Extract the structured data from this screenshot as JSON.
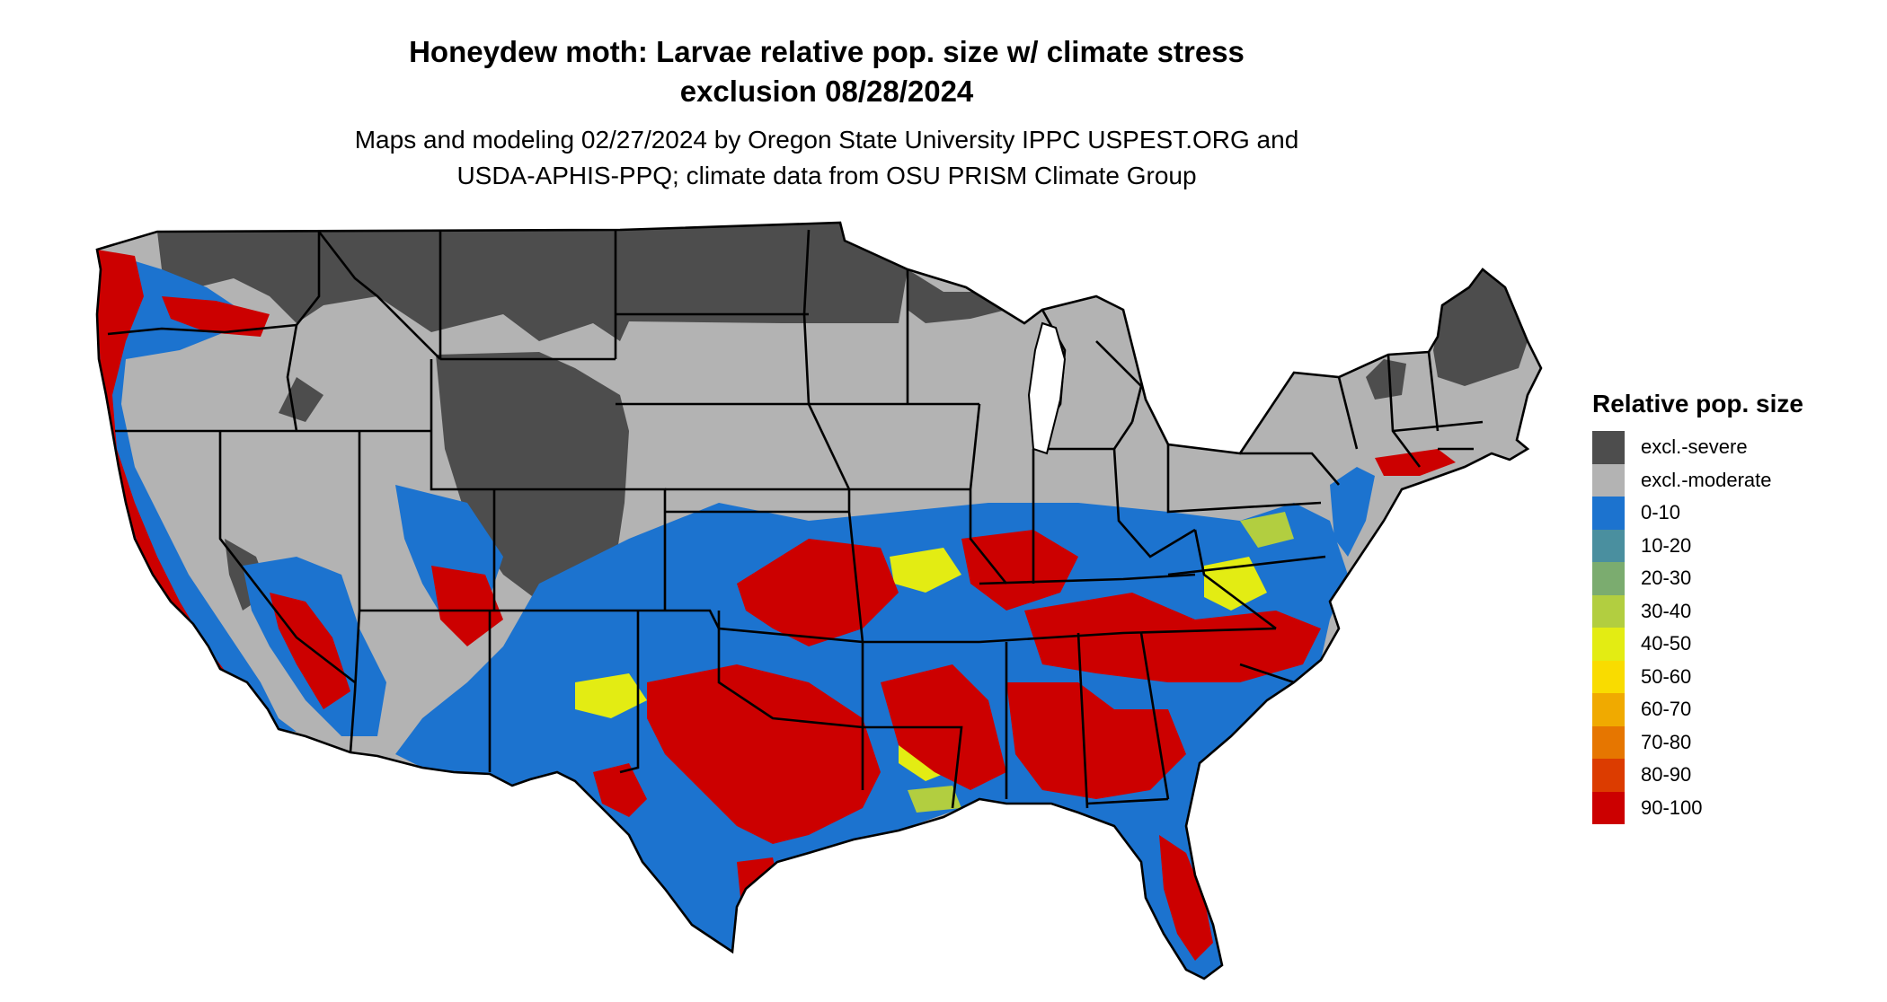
{
  "title_line1": "Honeydew moth: Larvae relative pop. size w/ climate stress",
  "title_line2": "exclusion 08/28/2024",
  "subtitle_line1": "Maps and modeling 02/27/2024 by Oregon State University IPPC USPEST.ORG and",
  "subtitle_line2": "USDA-APHIS-PPQ; climate data from OSU PRISM Climate Group",
  "legend": {
    "title": "Relative pop. size",
    "items": [
      {
        "label": "excl.-severe",
        "color": "#4d4d4d"
      },
      {
        "label": "excl.-moderate",
        "color": "#b3b3b3"
      },
      {
        "label": "0-10",
        "color": "#1c73cf"
      },
      {
        "label": "10-20",
        "color": "#4a8f9f"
      },
      {
        "label": "20-30",
        "color": "#7bac6f"
      },
      {
        "label": "30-40",
        "color": "#b2ce40"
      },
      {
        "label": "40-50",
        "color": "#e3ec13"
      },
      {
        "label": "50-60",
        "color": "#f9dc00"
      },
      {
        "label": "60-70",
        "color": "#f0aa00"
      },
      {
        "label": "70-80",
        "color": "#e67600"
      },
      {
        "label": "80-90",
        "color": "#dc3c00"
      },
      {
        "label": "90-100",
        "color": "#cc0000"
      }
    ]
  }
}
